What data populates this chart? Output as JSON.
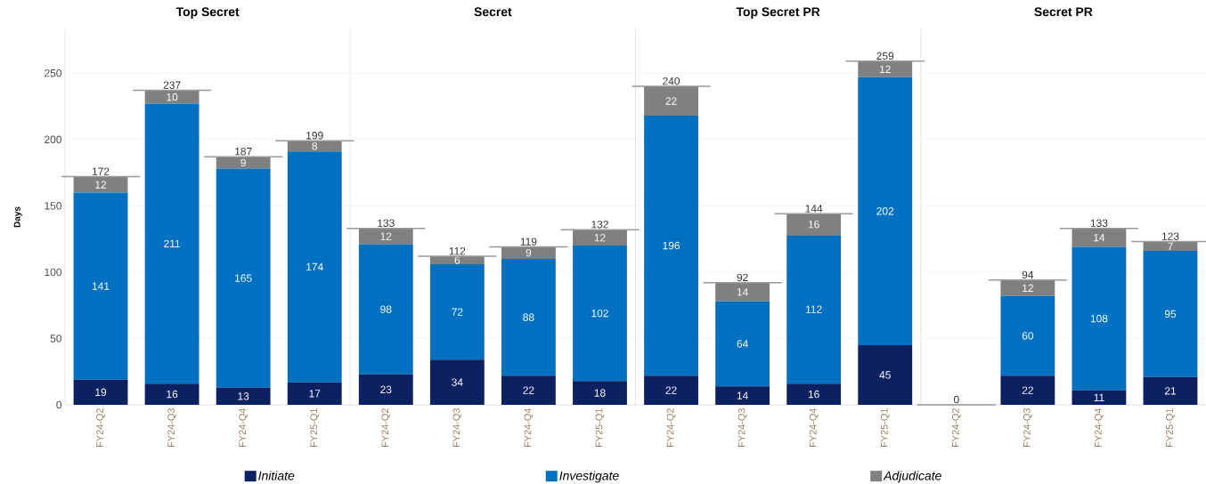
{
  "chart_data": [
    {
      "type": "bar",
      "title": "Top Secret",
      "ylabel": "Days",
      "categories": [
        "FY24-Q2",
        "FY24-Q3",
        "FY24-Q4",
        "FY25-Q1"
      ],
      "stacked": true,
      "ylim": [
        0,
        283
      ],
      "yticks": [
        0,
        50,
        100,
        150,
        200,
        250
      ],
      "grid": "y",
      "legend": "bottom",
      "data_labels": true,
      "series": [
        {
          "name": "Initiate",
          "color": "#0b2161",
          "values": [
            19,
            16,
            13,
            17
          ]
        },
        {
          "name": "Investigate",
          "color": "#0070c0",
          "values": [
            141,
            211,
            165,
            174
          ]
        },
        {
          "name": "Adjudicate",
          "color": "#808080",
          "values": [
            12,
            10,
            9,
            8
          ]
        }
      ],
      "totals": [
        "172",
        "237",
        "187",
        "199"
      ]
    },
    {
      "type": "bar",
      "title": "Secret",
      "categories": [
        "FY24-Q2",
        "FY24-Q3",
        "FY24-Q4",
        "FY25-Q1"
      ],
      "stacked": true,
      "ylim": [
        0,
        283
      ],
      "yticks": [
        0,
        50,
        100,
        150,
        200,
        250
      ],
      "grid": "y",
      "tick_labels": "x",
      "data_labels": true,
      "series": [
        {
          "color": "#0b2161",
          "values": [
            23,
            34,
            22,
            18
          ]
        },
        {
          "color": "#0070c0",
          "values": [
            98,
            72,
            88,
            102
          ]
        },
        {
          "color": "#808080",
          "values": [
            12,
            6,
            9,
            12
          ]
        }
      ],
      "totals": [
        "133",
        "112",
        "119",
        "132"
      ]
    },
    {
      "type": "bar",
      "title": "Top Secret PR",
      "categories": [
        "FY24-Q2",
        "FY24-Q3",
        "FY24-Q4",
        "FY25-Q1"
      ],
      "stacked": true,
      "ylim": [
        0,
        283
      ],
      "yticks": [
        0,
        50,
        100,
        150,
        200,
        250
      ],
      "grid": "y",
      "tick_labels": "x",
      "data_labels": true,
      "series": [
        {
          "color": "#0b2161",
          "values": [
            22,
            14,
            16,
            45
          ]
        },
        {
          "color": "#0070c0",
          "values": [
            196,
            64,
            112,
            202
          ]
        },
        {
          "color": "#808080",
          "values": [
            22,
            14,
            16,
            12
          ]
        }
      ],
      "totals": [
        "240",
        "92",
        "144",
        "259"
      ]
    },
    {
      "type": "bar",
      "title": "Secret PR",
      "categories": [
        "FY24-Q2",
        "FY24-Q3",
        "FY24-Q4",
        "FY25-Q1"
      ],
      "stacked": true,
      "ylim": [
        0,
        283
      ],
      "yticks": [
        0,
        50,
        100,
        150,
        200,
        250
      ],
      "grid": "y",
      "tick_labels": "x",
      "data_labels": true,
      "series": [
        {
          "color": "#0b2161",
          "values": [
            null,
            22,
            11,
            21
          ]
        },
        {
          "color": "#0070c0",
          "values": [
            null,
            60,
            108,
            95
          ]
        },
        {
          "color": "#808080",
          "values": [
            null,
            12,
            14,
            7
          ]
        }
      ],
      "totals": [
        "0",
        "94",
        "133",
        "123"
      ]
    }
  ]
}
